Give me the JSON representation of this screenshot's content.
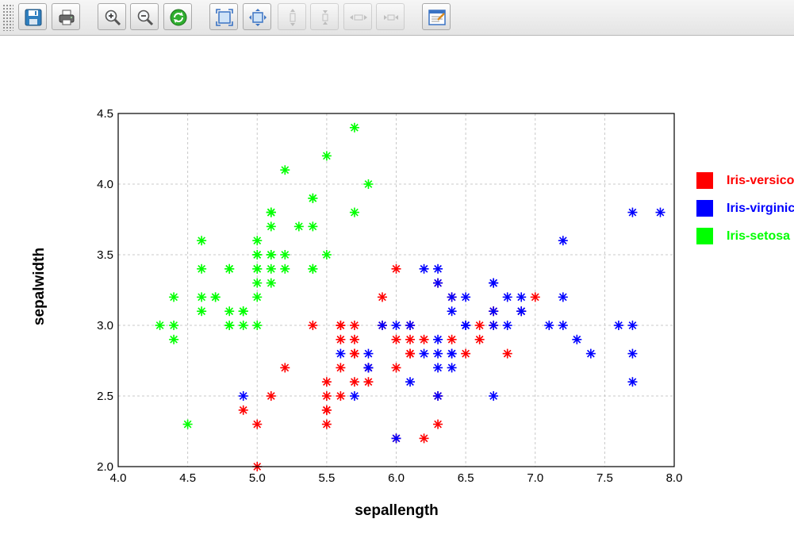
{
  "toolbar": {
    "buttons": [
      {
        "icon": "save-icon",
        "enabled": true
      },
      {
        "icon": "print-icon",
        "enabled": true
      },
      {
        "icon": "zoom-in-icon",
        "enabled": true
      },
      {
        "icon": "zoom-out-icon",
        "enabled": true
      },
      {
        "icon": "refresh-icon",
        "enabled": true
      },
      {
        "icon": "fit-all-icon",
        "enabled": true
      },
      {
        "icon": "fit-selection-icon",
        "enabled": true
      },
      {
        "icon": "expand-vertical-icon",
        "enabled": false
      },
      {
        "icon": "shrink-vertical-icon",
        "enabled": false
      },
      {
        "icon": "expand-horizontal-icon",
        "enabled": false
      },
      {
        "icon": "shrink-horizontal-icon",
        "enabled": false
      },
      {
        "icon": "properties-icon",
        "enabled": true
      }
    ]
  },
  "chart_data": {
    "type": "scatter",
    "title": "",
    "xlabel": "sepallength",
    "ylabel": "sepalwidth",
    "xlim": [
      4.0,
      8.0
    ],
    "ylim": [
      2.0,
      4.5
    ],
    "xticks": [
      "4.0",
      "4.5",
      "5.0",
      "5.5",
      "6.0",
      "6.5",
      "7.0",
      "7.5",
      "8.0"
    ],
    "yticks": [
      "2.0",
      "2.5",
      "3.0",
      "3.5",
      "4.0",
      "4.5"
    ],
    "grid": true,
    "legend_position": "right",
    "marker": "asterisk",
    "series": [
      {
        "name": "Iris-versico",
        "color": "#ff0000",
        "points": [
          [
            7.0,
            3.2
          ],
          [
            6.4,
            3.2
          ],
          [
            6.9,
            3.1
          ],
          [
            5.5,
            2.3
          ],
          [
            6.5,
            2.8
          ],
          [
            5.7,
            2.8
          ],
          [
            6.3,
            3.3
          ],
          [
            4.9,
            2.4
          ],
          [
            6.6,
            2.9
          ],
          [
            5.2,
            2.7
          ],
          [
            5.0,
            2.0
          ],
          [
            5.9,
            3.0
          ],
          [
            6.0,
            2.2
          ],
          [
            6.1,
            2.9
          ],
          [
            5.6,
            2.9
          ],
          [
            6.7,
            3.1
          ],
          [
            5.6,
            3.0
          ],
          [
            5.8,
            2.7
          ],
          [
            6.2,
            2.2
          ],
          [
            5.6,
            2.5
          ],
          [
            5.9,
            3.2
          ],
          [
            6.1,
            2.8
          ],
          [
            6.3,
            2.5
          ],
          [
            6.1,
            2.8
          ],
          [
            6.4,
            2.9
          ],
          [
            6.6,
            3.0
          ],
          [
            6.8,
            2.8
          ],
          [
            6.7,
            3.0
          ],
          [
            6.0,
            2.9
          ],
          [
            5.7,
            2.6
          ],
          [
            5.5,
            2.4
          ],
          [
            5.5,
            2.4
          ],
          [
            5.8,
            2.7
          ],
          [
            6.0,
            2.7
          ],
          [
            5.4,
            3.0
          ],
          [
            6.0,
            3.4
          ],
          [
            6.7,
            3.1
          ],
          [
            6.3,
            2.3
          ],
          [
            5.6,
            3.0
          ],
          [
            5.5,
            2.5
          ],
          [
            5.5,
            2.6
          ],
          [
            6.1,
            3.0
          ],
          [
            5.8,
            2.6
          ],
          [
            5.0,
            2.3
          ],
          [
            5.6,
            2.7
          ],
          [
            5.7,
            3.0
          ],
          [
            5.7,
            2.9
          ],
          [
            6.2,
            2.9
          ],
          [
            5.1,
            2.5
          ],
          [
            5.7,
            2.8
          ]
        ]
      },
      {
        "name": "Iris-virginic",
        "color": "#0000ff",
        "points": [
          [
            6.3,
            3.3
          ],
          [
            5.8,
            2.7
          ],
          [
            7.1,
            3.0
          ],
          [
            6.3,
            2.9
          ],
          [
            6.5,
            3.0
          ],
          [
            7.6,
            3.0
          ],
          [
            4.9,
            2.5
          ],
          [
            7.3,
            2.9
          ],
          [
            6.7,
            2.5
          ],
          [
            7.2,
            3.6
          ],
          [
            6.5,
            3.2
          ],
          [
            6.4,
            2.7
          ],
          [
            6.8,
            3.0
          ],
          [
            5.7,
            2.5
          ],
          [
            5.8,
            2.8
          ],
          [
            6.4,
            3.2
          ],
          [
            6.5,
            3.0
          ],
          [
            7.7,
            3.8
          ],
          [
            7.7,
            2.6
          ],
          [
            6.0,
            2.2
          ],
          [
            6.9,
            3.2
          ],
          [
            5.6,
            2.8
          ],
          [
            7.7,
            2.8
          ],
          [
            6.3,
            2.7
          ],
          [
            6.7,
            3.3
          ],
          [
            7.2,
            3.2
          ],
          [
            6.2,
            2.8
          ],
          [
            6.1,
            3.0
          ],
          [
            6.4,
            2.8
          ],
          [
            7.2,
            3.0
          ],
          [
            7.4,
            2.8
          ],
          [
            7.9,
            3.8
          ],
          [
            6.4,
            2.8
          ],
          [
            6.3,
            2.8
          ],
          [
            6.1,
            2.6
          ],
          [
            7.7,
            3.0
          ],
          [
            6.3,
            3.4
          ],
          [
            6.4,
            3.1
          ],
          [
            6.0,
            3.0
          ],
          [
            6.9,
            3.1
          ],
          [
            6.7,
            3.1
          ],
          [
            6.9,
            3.1
          ],
          [
            5.8,
            2.7
          ],
          [
            6.8,
            3.2
          ],
          [
            6.7,
            3.3
          ],
          [
            6.7,
            3.0
          ],
          [
            6.3,
            2.5
          ],
          [
            6.5,
            3.0
          ],
          [
            6.2,
            3.4
          ],
          [
            5.9,
            3.0
          ]
        ]
      },
      {
        "name": "Iris-setosa",
        "color": "#00ff00",
        "points": [
          [
            5.1,
            3.5
          ],
          [
            4.9,
            3.0
          ],
          [
            4.7,
            3.2
          ],
          [
            4.6,
            3.1
          ],
          [
            5.0,
            3.6
          ],
          [
            5.4,
            3.9
          ],
          [
            4.6,
            3.4
          ],
          [
            5.0,
            3.4
          ],
          [
            4.4,
            2.9
          ],
          [
            4.9,
            3.1
          ],
          [
            5.4,
            3.7
          ],
          [
            4.8,
            3.4
          ],
          [
            4.8,
            3.0
          ],
          [
            4.3,
            3.0
          ],
          [
            5.8,
            4.0
          ],
          [
            5.7,
            4.4
          ],
          [
            5.4,
            3.9
          ],
          [
            5.1,
            3.5
          ],
          [
            5.7,
            3.8
          ],
          [
            5.1,
            3.8
          ],
          [
            5.4,
            3.4
          ],
          [
            5.1,
            3.7
          ],
          [
            4.6,
            3.6
          ],
          [
            5.1,
            3.3
          ],
          [
            4.8,
            3.4
          ],
          [
            5.0,
            3.0
          ],
          [
            5.0,
            3.4
          ],
          [
            5.2,
            3.5
          ],
          [
            5.2,
            3.4
          ],
          [
            4.7,
            3.2
          ],
          [
            4.8,
            3.1
          ],
          [
            5.4,
            3.4
          ],
          [
            5.2,
            4.1
          ],
          [
            5.5,
            4.2
          ],
          [
            4.9,
            3.1
          ],
          [
            5.0,
            3.2
          ],
          [
            5.5,
            3.5
          ],
          [
            4.9,
            3.1
          ],
          [
            4.4,
            3.0
          ],
          [
            5.1,
            3.4
          ],
          [
            5.0,
            3.5
          ],
          [
            4.5,
            2.3
          ],
          [
            4.4,
            3.2
          ],
          [
            5.0,
            3.5
          ],
          [
            5.1,
            3.8
          ],
          [
            4.8,
            3.0
          ],
          [
            5.1,
            3.8
          ],
          [
            4.6,
            3.2
          ],
          [
            5.3,
            3.7
          ],
          [
            5.0,
            3.3
          ]
        ]
      }
    ]
  }
}
